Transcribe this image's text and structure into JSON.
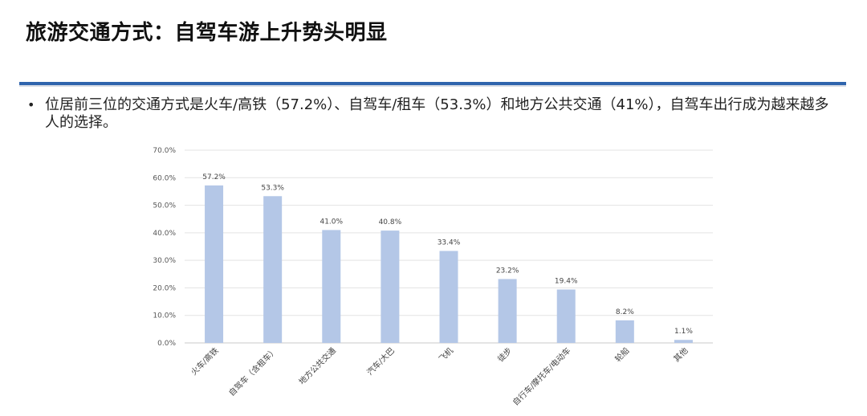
{
  "page": {
    "title": "旅游交通方式：自驾车游上升势头明显",
    "bullet_marker": "•",
    "bullet_text": "位居前三位的交通方式是火车/高铁（57.2%）、自驾车/租车（53.3%）和地方公共交通（41%），自驾车出行成为越来越多人的选择。"
  },
  "chart_data": {
    "type": "bar",
    "title": "",
    "xlabel": "",
    "ylabel": "",
    "categories": [
      "火车/高铁",
      "自驾车（含租车）",
      "地方公共交通",
      "汽车/大巴",
      "飞机",
      "徒步",
      "自行车/摩托车/电动车",
      "轮船",
      "其他"
    ],
    "values": [
      57.2,
      53.3,
      41.0,
      40.8,
      33.4,
      23.2,
      19.4,
      8.2,
      1.1
    ],
    "value_labels": [
      "57.2%",
      "53.3%",
      "41.0%",
      "40.8%",
      "33.4%",
      "23.2%",
      "19.4%",
      "8.2%",
      "1.1%"
    ],
    "ylim": [
      0,
      70
    ],
    "yticks": [
      0,
      10,
      20,
      30,
      40,
      50,
      60,
      70
    ],
    "ytick_labels": [
      "0.0%",
      "10.0%",
      "20.0%",
      "30.0%",
      "40.0%",
      "50.0%",
      "60.0%",
      "70.0%"
    ],
    "grid": true,
    "legend": "none",
    "bar_color": "#b4c7e7",
    "grid_color": "#e3e3e3"
  }
}
